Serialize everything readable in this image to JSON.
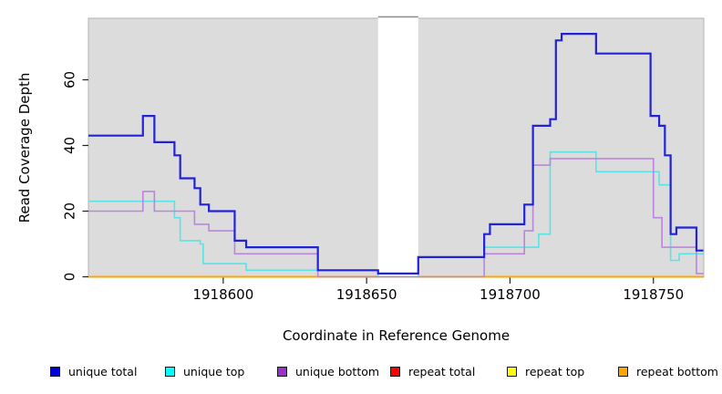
{
  "chart_data": {
    "type": "line",
    "subtype": "step-after",
    "title": "",
    "xlabel": "Coordinate in Reference Genome",
    "ylabel": "Read Coverage Depth",
    "xlim": [
      1918553,
      1918768
    ],
    "ylim": [
      0,
      75
    ],
    "x_ticks": [
      1918600,
      1918650,
      1918700,
      1918750
    ],
    "y_ticks": [
      0,
      20,
      40,
      60
    ],
    "grid": false,
    "legend_position": "bottom",
    "panel_bg": "#DCDCDC",
    "panel_border": "#B3B3B3",
    "gap_region": {
      "x_start": 1918654,
      "x_end": 1918668,
      "fill": "#FFFFFF",
      "top_line_color": "#8C8C8C"
    },
    "series": [
      {
        "name": "unique total",
        "line_color": "#2222D8",
        "legend_color": "#0000DC",
        "line_width": 2.2,
        "points": [
          [
            1918553,
            43
          ],
          [
            1918572,
            49
          ],
          [
            1918576,
            41
          ],
          [
            1918583,
            37
          ],
          [
            1918585,
            30
          ],
          [
            1918590,
            27
          ],
          [
            1918592,
            22
          ],
          [
            1918595,
            20
          ],
          [
            1918604,
            11
          ],
          [
            1918608,
            9
          ],
          [
            1918633,
            2
          ],
          [
            1918654,
            1
          ],
          [
            1918668,
            6
          ],
          [
            1918691,
            13
          ],
          [
            1918693,
            16
          ],
          [
            1918705,
            22
          ],
          [
            1918708,
            46
          ],
          [
            1918714,
            48
          ],
          [
            1918716,
            72
          ],
          [
            1918718,
            74
          ],
          [
            1918730,
            68
          ],
          [
            1918749,
            49
          ],
          [
            1918752,
            46
          ],
          [
            1918754,
            37
          ],
          [
            1918756,
            13
          ],
          [
            1918758,
            15
          ],
          [
            1918765,
            8
          ],
          [
            1918768,
            8
          ]
        ]
      },
      {
        "name": "unique top",
        "line_color": "#58E4E6",
        "legend_color": "#00FFFF",
        "line_width": 1.6,
        "points": [
          [
            1918553,
            23
          ],
          [
            1918583,
            18
          ],
          [
            1918585,
            11
          ],
          [
            1918592,
            10
          ],
          [
            1918593,
            4
          ],
          [
            1918608,
            2
          ],
          [
            1918654,
            0
          ],
          [
            1918668,
            6
          ],
          [
            1918691,
            9
          ],
          [
            1918710,
            13
          ],
          [
            1918714,
            38
          ],
          [
            1918730,
            32
          ],
          [
            1918752,
            28
          ],
          [
            1918756,
            5
          ],
          [
            1918759,
            7
          ],
          [
            1918768,
            7
          ]
        ]
      },
      {
        "name": "unique bottom",
        "line_color": "#BB85DC",
        "legend_color": "#9932CC",
        "line_width": 1.6,
        "points": [
          [
            1918553,
            20
          ],
          [
            1918572,
            26
          ],
          [
            1918576,
            20
          ],
          [
            1918590,
            16
          ],
          [
            1918595,
            14
          ],
          [
            1918604,
            7
          ],
          [
            1918633,
            0
          ],
          [
            1918691,
            7
          ],
          [
            1918705,
            14
          ],
          [
            1918708,
            34
          ],
          [
            1918714,
            36
          ],
          [
            1918750,
            18
          ],
          [
            1918753,
            9
          ],
          [
            1918765,
            1
          ],
          [
            1918768,
            1
          ]
        ]
      },
      {
        "name": "repeat total",
        "line_color": "#E03030",
        "legend_color": "#FF0000",
        "line_width": 1.5,
        "points": [
          [
            1918553,
            0
          ],
          [
            1918768,
            0
          ]
        ]
      },
      {
        "name": "repeat top",
        "line_color": "#F5E642",
        "legend_color": "#FFFF00",
        "line_width": 1.5,
        "points": [
          [
            1918553,
            0
          ],
          [
            1918768,
            0
          ]
        ]
      },
      {
        "name": "repeat bottom",
        "line_color": "#FFA500",
        "legend_color": "#FFA500",
        "line_width": 1.9,
        "points": [
          [
            1918553,
            0
          ],
          [
            1918768,
            0
          ]
        ]
      }
    ]
  }
}
